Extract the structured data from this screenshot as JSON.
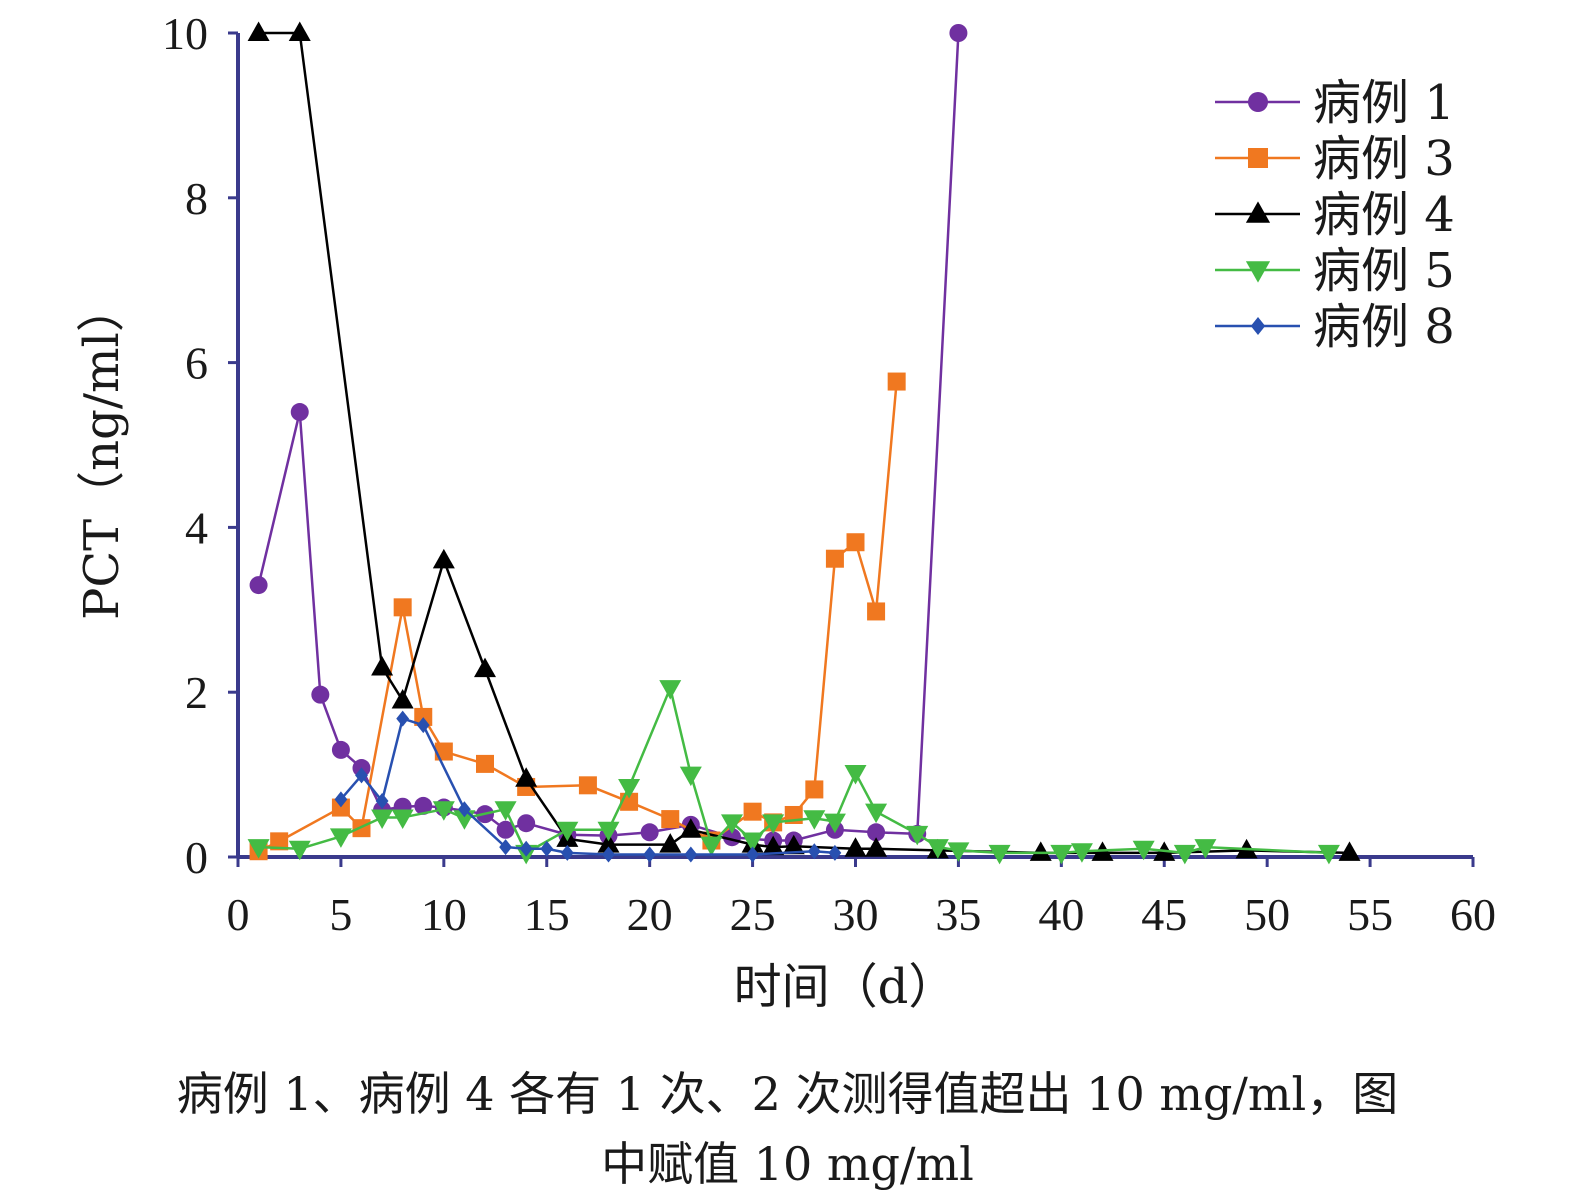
{
  "chart_data": {
    "type": "line",
    "xlabel": "时间（d）",
    "ylabel": "PCT（ng/ml）",
    "xlim": [
      0,
      60
    ],
    "ylim": [
      0,
      10
    ],
    "xticks": [
      0,
      5,
      10,
      15,
      20,
      25,
      30,
      35,
      40,
      45,
      50,
      55,
      60
    ],
    "yticks": [
      0,
      2,
      4,
      6,
      8,
      10
    ],
    "grid": false,
    "legend_position": "top-right",
    "series": [
      {
        "name": "病例 1",
        "color": "#7030a0",
        "marker": "circle",
        "x": [
          1,
          3,
          4,
          5,
          6,
          7,
          8,
          9,
          10,
          12,
          13,
          14,
          16,
          18,
          20,
          22,
          24,
          26,
          27,
          29,
          31,
          33,
          35
        ],
        "y": [
          3.3,
          5.4,
          1.97,
          1.3,
          1.08,
          0.57,
          0.61,
          0.62,
          0.6,
          0.52,
          0.33,
          0.41,
          0.27,
          0.26,
          0.3,
          0.39,
          0.24,
          0.2,
          0.2,
          0.33,
          0.3,
          0.28,
          10
        ]
      },
      {
        "name": "病例 3",
        "color": "#f07820",
        "marker": "square",
        "x": [
          1,
          2,
          5,
          6,
          8,
          9,
          10,
          12,
          14,
          17,
          19,
          21,
          23,
          25,
          26,
          27,
          28,
          29,
          30,
          31,
          32
        ],
        "y": [
          0.07,
          0.19,
          0.6,
          0.35,
          3.03,
          1.7,
          1.28,
          1.13,
          0.85,
          0.87,
          0.67,
          0.46,
          0.2,
          0.55,
          0.42,
          0.51,
          0.82,
          3.62,
          3.82,
          2.98,
          5.77
        ]
      },
      {
        "name": "病例 4",
        "color": "#000000",
        "marker": "triangle-up",
        "x": [
          1,
          3,
          7,
          8,
          10,
          12,
          14,
          16,
          18,
          21,
          22,
          25,
          26,
          27,
          30,
          31,
          34,
          39,
          42,
          45,
          49,
          54
        ],
        "y": [
          10,
          10,
          2.3,
          1.9,
          3.6,
          2.28,
          0.95,
          0.22,
          0.15,
          0.15,
          0.33,
          0.15,
          0.12,
          0.13,
          0.1,
          0.1,
          0.08,
          0.05,
          0.05,
          0.05,
          0.08,
          0.05
        ]
      },
      {
        "name": "病例 5",
        "color": "#44bb44",
        "marker": "triangle-down",
        "x": [
          1,
          3,
          5,
          7,
          8,
          10,
          11,
          13,
          14,
          16,
          18,
          19,
          21,
          22,
          23,
          24,
          25,
          26,
          28,
          29,
          30,
          31,
          33,
          34,
          35,
          37,
          40,
          41,
          44,
          46,
          47,
          53
        ],
        "y": [
          0.12,
          0.1,
          0.25,
          0.48,
          0.48,
          0.58,
          0.47,
          0.58,
          0.05,
          0.33,
          0.33,
          0.85,
          2.05,
          1.0,
          0.15,
          0.42,
          0.2,
          0.42,
          0.47,
          0.43,
          1.02,
          0.55,
          0.28,
          0.12,
          0.08,
          0.05,
          0.05,
          0.07,
          0.1,
          0.05,
          0.12,
          0.05
        ]
      },
      {
        "name": "病例 8",
        "color": "#2850b0",
        "marker": "diamond",
        "x": [
          5,
          6,
          7,
          8,
          9,
          11,
          13,
          14,
          15,
          16,
          18,
          20,
          22,
          25,
          28,
          29
        ],
        "y": [
          0.7,
          0.99,
          0.68,
          1.68,
          1.6,
          0.58,
          0.12,
          0.1,
          0.1,
          0.05,
          0.03,
          0.03,
          0.03,
          0.03,
          0.07,
          0.05
        ]
      }
    ]
  },
  "caption": {
    "line1": "病例 1、病例 4 各有 1 次、2 次测得值超出 10 mg/ml，图",
    "line2": "中赋值 10 mg/ml"
  }
}
